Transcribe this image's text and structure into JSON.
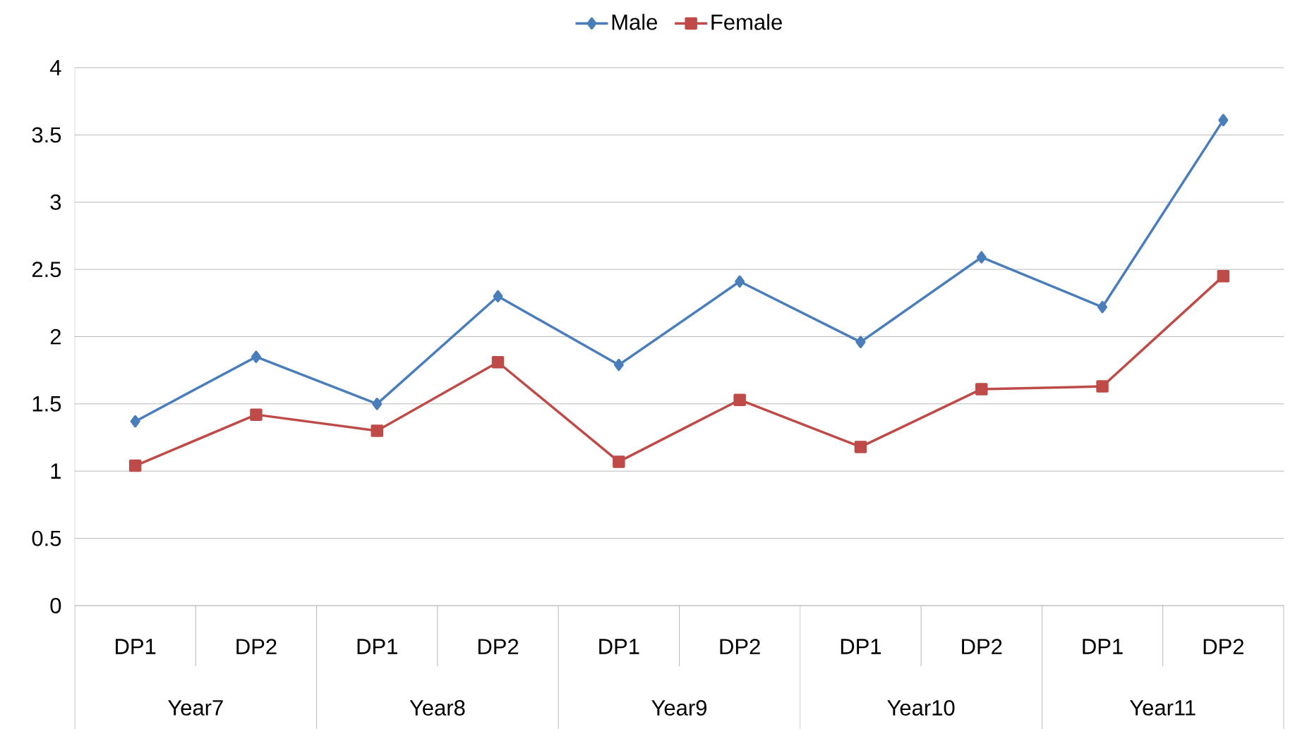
{
  "chart_data": {
    "type": "line",
    "categories": [
      "DP1",
      "DP2",
      "DP1",
      "DP2",
      "DP1",
      "DP2",
      "DP1",
      "DP2",
      "DP1",
      "DP2"
    ],
    "series": [
      {
        "name": "Male",
        "color": "#4a7ebb",
        "marker": "diamond",
        "values": [
          1.37,
          1.85,
          1.5,
          2.3,
          1.79,
          2.41,
          1.96,
          2.59,
          2.22,
          3.61
        ]
      },
      {
        "name": "Female",
        "color": "#be4b48",
        "marker": "square",
        "values": [
          1.04,
          1.42,
          1.3,
          1.81,
          1.07,
          1.53,
          1.18,
          1.61,
          1.63,
          2.45
        ]
      }
    ],
    "annotations": [
      "Year7",
      "Year8",
      "Year9",
      "Year10",
      "Year11"
    ],
    "ylim": [
      0,
      4
    ],
    "yticks": [
      0,
      0.5,
      1,
      1.5,
      2,
      2.5,
      3,
      3.5,
      4
    ],
    "grid": "y",
    "legend": "top",
    "line_style": "solid"
  }
}
